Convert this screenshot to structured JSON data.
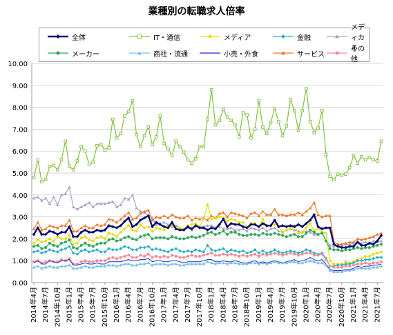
{
  "title": "業種別の転職求人倍率",
  "chart_data": {
    "type": "line",
    "title": "業種別の転職求人倍率",
    "xlabel": "",
    "ylabel": "",
    "ylim": [
      0,
      10
    ],
    "yticks": [
      "0.00",
      "1.00",
      "2.00",
      "3.00",
      "4.00",
      "5.00",
      "6.00",
      "7.00",
      "8.00",
      "9.00",
      "10.00"
    ],
    "grid": true,
    "legend_position": "top",
    "x": [
      "2014年4月",
      "2014年5月",
      "2014年6月",
      "2014年7月",
      "2014年8月",
      "2014年9月",
      "2014年10月",
      "2014年11月",
      "2014年12月",
      "2015年1月",
      "2015年2月",
      "2015年3月",
      "2015年4月",
      "2015年5月",
      "2015年6月",
      "2015年7月",
      "2015年8月",
      "2015年9月",
      "2015年10月",
      "2015年11月",
      "2015年12月",
      "2016年1月",
      "2016年2月",
      "2016年3月",
      "2016年4月",
      "2016年5月",
      "2016年6月",
      "2016年7月",
      "2016年8月",
      "2016年9月",
      "2016年10月",
      "2016年11月",
      "2016年12月",
      "2017年1月",
      "2017年2月",
      "2017年3月",
      "2017年4月",
      "2017年5月",
      "2017年6月",
      "2017年7月",
      "2017年8月",
      "2017年9月",
      "2017年10月",
      "2017年11月",
      "2017年12月",
      "2018年1月",
      "2018年2月",
      "2018年3月",
      "2018年4月",
      "2018年5月",
      "2018年6月",
      "2018年7月",
      "2018年8月",
      "2018年9月",
      "2018年10月",
      "2018年11月",
      "2018年12月",
      "2019年1月",
      "2019年2月",
      "2019年3月",
      "2019年4月",
      "2019年5月",
      "2019年6月",
      "2019年7月",
      "2019年8月",
      "2019年9月",
      "2019年10月",
      "2019年11月",
      "2019年12月",
      "2020年1月",
      "2020年2月",
      "2020年3月",
      "2020年4月",
      "2020年5月",
      "2020年6月",
      "2020年7月",
      "2020年8月",
      "2020年9月",
      "2020年10月",
      "2020年11月",
      "2020年12月",
      "2021年1月",
      "2021年2月",
      "2021年3月",
      "2021年4月",
      "2021年5月",
      "2021年6月",
      "2021年7月",
      "2021年8月"
    ],
    "xtick_labels": [
      "2014年4月",
      "2014年7月",
      "2014年10月",
      "2015年1月",
      "2015年4月",
      "2015年7月",
      "2015年10月",
      "2016年1月",
      "2016年4月",
      "2016年7月",
      "2016年10月",
      "2017年1月",
      "2017年4月",
      "2017年7月",
      "2017年10月",
      "2018年1月",
      "2018年4月",
      "2018年7月",
      "2018年10月",
      "2019年1月",
      "2019年4月",
      "2019年7月",
      "2019年10月",
      "2020年1月",
      "2020年4月",
      "2020年7月",
      "2020年10月",
      "2021年1月",
      "2021年4月",
      "2021年7月"
    ],
    "series": [
      {
        "name": "全体",
        "color": "#0a0a70",
        "marker": "diamond",
        "width": 2.4,
        "values": [
          2.2,
          2.5,
          2.2,
          2.2,
          2.35,
          2.3,
          2.2,
          2.3,
          2.3,
          2.55,
          2.1,
          2.1,
          2.3,
          2.4,
          2.3,
          2.3,
          2.4,
          2.35,
          2.4,
          2.6,
          2.55,
          2.5,
          2.6,
          2.8,
          2.95,
          2.55,
          2.65,
          2.85,
          2.95,
          3.05,
          2.55,
          2.75,
          2.65,
          2.55,
          2.5,
          2.75,
          2.45,
          2.4,
          2.4,
          2.55,
          2.45,
          2.6,
          2.5,
          2.5,
          2.4,
          2.5,
          2.45,
          2.65,
          2.9,
          2.55,
          2.7,
          2.65,
          2.65,
          2.55,
          2.5,
          2.65,
          2.65,
          2.55,
          2.7,
          2.6,
          2.6,
          2.85,
          2.55,
          2.6,
          2.55,
          2.6,
          2.55,
          2.65,
          2.55,
          2.7,
          2.85,
          3.1,
          2.55,
          2.45,
          2.5,
          2.5,
          1.75,
          1.65,
          1.6,
          1.6,
          1.65,
          1.65,
          1.85,
          1.7,
          1.7,
          1.8,
          1.75,
          1.9,
          2.15
        ]
      },
      {
        "name": "IT・通信",
        "color": "#7fc03c",
        "marker": "square-open",
        "width": 1.2,
        "values": [
          4.8,
          5.6,
          4.6,
          4.7,
          5.3,
          5.35,
          5.15,
          5.6,
          6.45,
          5.3,
          5.15,
          5.55,
          6.2,
          6.0,
          5.4,
          5.5,
          6.25,
          6.3,
          6.05,
          6.15,
          7.45,
          6.6,
          6.8,
          7.6,
          7.8,
          8.3,
          6.75,
          6.2,
          6.7,
          7.1,
          6.3,
          6.65,
          7.6,
          6.35,
          6.1,
          5.8,
          6.45,
          6.2,
          5.95,
          5.6,
          5.45,
          5.65,
          6.2,
          6.2,
          7.45,
          8.8,
          7.2,
          7.4,
          7.9,
          7.55,
          7.4,
          7.2,
          6.65,
          7.75,
          7.65,
          6.6,
          7.0,
          8.3,
          7.1,
          6.8,
          7.3,
          7.95,
          7.35,
          6.7,
          7.15,
          8.35,
          7.85,
          6.95,
          7.85,
          8.85,
          7.35,
          6.85,
          7.05,
          7.85,
          5.85,
          4.85,
          4.7,
          4.95,
          4.9,
          4.95,
          5.25,
          5.8,
          5.45,
          5.75,
          5.6,
          5.7,
          5.6,
          5.55,
          6.45
        ]
      },
      {
        "name": "メディア",
        "color": "#e6dc00",
        "marker": "diamond",
        "width": 1.2,
        "values": [
          1.8,
          1.95,
          1.85,
          1.9,
          2.0,
          1.9,
          2.1,
          2.0,
          2.0,
          2.15,
          1.75,
          1.8,
          2.05,
          2.1,
          1.95,
          1.9,
          2.05,
          2.1,
          2.0,
          2.25,
          2.2,
          2.1,
          2.3,
          2.45,
          2.6,
          2.4,
          2.35,
          2.65,
          2.5,
          2.55,
          2.35,
          2.5,
          2.45,
          2.4,
          2.55,
          2.6,
          2.45,
          2.5,
          2.45,
          2.6,
          2.65,
          2.7,
          2.55,
          2.9,
          3.55,
          2.9,
          2.95,
          3.0,
          2.95,
          2.8,
          2.9,
          2.85,
          2.75,
          2.75,
          2.55,
          2.7,
          2.7,
          2.55,
          2.9,
          2.55,
          2.6,
          2.65,
          2.55,
          2.3,
          2.4,
          2.45,
          2.6,
          2.25,
          2.3,
          2.5,
          2.7,
          2.35,
          2.45,
          2.3,
          2.25,
          1.0,
          0.85,
          0.85,
          0.85,
          0.95,
          0.9,
          0.95,
          1.05,
          1.1,
          1.2,
          1.2,
          1.3,
          1.35,
          1.4
        ]
      },
      {
        "name": "金融",
        "color": "#20b0c8",
        "marker": "diamond",
        "width": 1.2,
        "values": [
          1.4,
          1.45,
          1.35,
          1.4,
          1.5,
          1.45,
          1.4,
          1.5,
          1.55,
          1.65,
          1.35,
          1.3,
          1.45,
          1.5,
          1.4,
          1.45,
          1.5,
          1.4,
          1.4,
          1.55,
          1.5,
          1.5,
          1.55,
          1.65,
          1.6,
          1.5,
          1.5,
          1.6,
          1.6,
          1.65,
          1.5,
          1.55,
          1.5,
          1.45,
          1.4,
          1.5,
          1.55,
          1.45,
          1.4,
          1.45,
          1.4,
          1.5,
          1.45,
          1.4,
          1.7,
          1.5,
          1.45,
          1.5,
          1.55,
          1.4,
          1.5,
          1.45,
          1.4,
          1.45,
          1.35,
          1.4,
          1.5,
          1.35,
          1.45,
          1.35,
          1.4,
          1.5,
          1.4,
          1.35,
          1.4,
          1.45,
          1.4,
          1.35,
          1.4,
          1.5,
          1.45,
          1.35,
          1.3,
          1.35,
          1.1,
          0.75,
          0.75,
          0.8,
          0.8,
          0.85,
          0.85,
          0.9,
          1.0,
          1.0,
          1.05,
          1.05,
          1.1,
          1.15,
          1.15
        ]
      },
      {
        "name": "メディカル",
        "color": "#a8a2cc",
        "marker": "triangle",
        "width": 1.2,
        "values": [
          3.85,
          3.9,
          3.75,
          3.85,
          3.6,
          3.9,
          3.55,
          4.0,
          4.05,
          4.35,
          3.45,
          3.35,
          3.45,
          3.55,
          3.65,
          3.45,
          3.6,
          3.6,
          3.6,
          3.65,
          3.7,
          3.45,
          3.55,
          3.85,
          3.8,
          4.0,
          3.4,
          3.25,
          3.2,
          3.05,
          2.95,
          2.65,
          2.7,
          2.75,
          2.65,
          2.55,
          2.6,
          2.5,
          2.45,
          2.5,
          2.4,
          2.6,
          2.55,
          2.55,
          2.6,
          2.6,
          2.5,
          2.55,
          2.45,
          2.45,
          2.5,
          2.4,
          2.4,
          2.45,
          2.35,
          2.5,
          2.45,
          2.4,
          2.5,
          2.35,
          2.45,
          2.5,
          2.35,
          2.3,
          2.4,
          2.45,
          2.4,
          2.35,
          2.3,
          2.35,
          2.3,
          2.2,
          2.2,
          2.3,
          1.9,
          1.7,
          1.65,
          1.7,
          1.7,
          1.75,
          1.75,
          1.8,
          1.85,
          1.8,
          1.85,
          1.8,
          1.9,
          1.85,
          1.9
        ]
      },
      {
        "name": "メーカー",
        "color": "#2aa854",
        "marker": "circle",
        "width": 1.2,
        "values": [
          1.65,
          1.7,
          1.55,
          1.6,
          1.8,
          1.7,
          1.65,
          1.8,
          1.85,
          1.95,
          1.6,
          1.55,
          1.7,
          1.8,
          1.7,
          1.65,
          1.75,
          1.8,
          1.8,
          1.95,
          2.0,
          1.9,
          1.95,
          2.05,
          2.1,
          2.0,
          1.95,
          2.1,
          2.15,
          2.2,
          2.0,
          2.05,
          2.05,
          2.05,
          2.0,
          2.1,
          2.05,
          2.0,
          2.0,
          2.05,
          2.1,
          2.05,
          2.1,
          2.15,
          2.25,
          2.3,
          2.2,
          2.25,
          2.35,
          2.2,
          2.3,
          2.3,
          2.2,
          2.15,
          2.15,
          2.2,
          2.2,
          2.15,
          2.25,
          2.2,
          2.2,
          2.25,
          2.2,
          2.15,
          2.1,
          2.15,
          2.2,
          2.1,
          2.1,
          2.25,
          2.4,
          2.3,
          2.2,
          2.25,
          1.9,
          1.55,
          1.5,
          1.5,
          1.45,
          1.5,
          1.5,
          1.55,
          1.6,
          1.55,
          1.6,
          1.6,
          1.65,
          1.7,
          1.75
        ]
      },
      {
        "name": "商社・流通",
        "color": "#78c0e0",
        "marker": "triangle",
        "width": 1.2,
        "values": [
          0.7,
          0.75,
          0.65,
          0.7,
          0.75,
          0.7,
          0.7,
          0.75,
          0.75,
          0.8,
          0.65,
          0.65,
          0.7,
          0.75,
          0.7,
          0.7,
          0.75,
          0.75,
          0.75,
          0.8,
          0.8,
          0.75,
          0.8,
          0.85,
          0.85,
          0.8,
          0.8,
          0.85,
          0.85,
          0.9,
          0.8,
          0.85,
          0.85,
          0.85,
          0.8,
          0.85,
          0.85,
          0.8,
          0.8,
          0.85,
          0.85,
          0.85,
          0.85,
          0.85,
          0.95,
          0.9,
          0.85,
          0.9,
          0.9,
          0.85,
          0.9,
          0.9,
          0.85,
          0.85,
          0.85,
          0.9,
          0.9,
          0.85,
          0.9,
          0.85,
          0.9,
          0.95,
          0.9,
          0.9,
          0.9,
          0.95,
          0.95,
          0.9,
          0.9,
          0.95,
          1.0,
          0.95,
          0.9,
          0.9,
          0.8,
          0.55,
          0.5,
          0.5,
          0.5,
          0.55,
          0.55,
          0.6,
          0.65,
          0.65,
          0.65,
          0.65,
          0.7,
          0.7,
          0.75
        ]
      },
      {
        "name": "小売・外食",
        "color": "#1a2ad8",
        "marker": "none",
        "width": 1.0,
        "values": [
          0.9,
          1.0,
          0.85,
          0.85,
          1.0,
          0.95,
          0.9,
          1.0,
          1.0,
          1.05,
          0.8,
          0.8,
          0.85,
          0.9,
          0.85,
          0.85,
          0.9,
          0.85,
          0.85,
          0.95,
          0.95,
          0.95,
          0.95,
          1.0,
          1.05,
          1.0,
          1.0,
          1.05,
          1.05,
          1.1,
          0.95,
          1.0,
          1.0,
          0.95,
          0.95,
          1.0,
          1.0,
          0.95,
          0.9,
          0.95,
          0.95,
          0.95,
          0.95,
          1.0,
          1.05,
          1.05,
          0.95,
          0.95,
          1.0,
          0.95,
          0.95,
          1.0,
          0.95,
          0.9,
          0.9,
          0.95,
          1.0,
          0.9,
          0.95,
          0.9,
          0.95,
          1.0,
          0.95,
          0.9,
          0.95,
          1.0,
          1.05,
          0.95,
          1.0,
          1.05,
          1.15,
          1.05,
          1.0,
          1.05,
          0.85,
          0.6,
          0.55,
          0.55,
          0.55,
          0.6,
          0.6,
          0.65,
          0.75,
          0.7,
          0.75,
          0.75,
          0.8,
          0.8,
          0.85
        ]
      },
      {
        "name": "サービス",
        "color": "#f07828",
        "marker": "triangle",
        "width": 1.2,
        "values": [
          2.45,
          2.75,
          2.4,
          2.45,
          2.6,
          2.55,
          2.5,
          2.6,
          2.6,
          2.85,
          2.35,
          2.35,
          2.5,
          2.6,
          2.5,
          2.5,
          2.65,
          2.6,
          2.65,
          2.9,
          2.85,
          2.75,
          2.9,
          3.05,
          3.2,
          2.9,
          2.95,
          3.15,
          3.25,
          3.3,
          2.85,
          3.0,
          2.95,
          3.05,
          2.95,
          3.1,
          3.0,
          2.95,
          2.95,
          3.05,
          2.85,
          2.95,
          2.9,
          2.95,
          2.85,
          3.05,
          2.95,
          3.15,
          3.2,
          3.0,
          3.2,
          3.15,
          3.1,
          3.05,
          2.95,
          3.15,
          3.2,
          3.05,
          3.25,
          3.1,
          3.1,
          3.35,
          3.1,
          3.1,
          3.05,
          3.1,
          3.1,
          3.2,
          3.1,
          3.25,
          3.4,
          3.65,
          3.1,
          3.0,
          3.05,
          3.05,
          1.85,
          1.75,
          1.75,
          1.8,
          1.85,
          1.85,
          2.0,
          1.95,
          2.0,
          2.05,
          2.1,
          2.2,
          2.25
        ]
      },
      {
        "name": "その他",
        "color": "#f08c96",
        "marker": "circle",
        "width": 1.2,
        "values": [
          0.95,
          1.0,
          0.9,
          0.95,
          1.0,
          0.95,
          0.95,
          1.05,
          1.0,
          1.1,
          0.85,
          0.85,
          0.95,
          1.0,
          0.95,
          0.95,
          1.0,
          1.0,
          1.0,
          1.1,
          1.15,
          1.1,
          1.15,
          1.2,
          1.25,
          1.15,
          1.15,
          1.25,
          1.2,
          1.3,
          1.15,
          1.2,
          1.15,
          1.2,
          1.15,
          1.25,
          1.2,
          1.15,
          1.15,
          1.2,
          1.25,
          1.2,
          1.2,
          1.25,
          1.3,
          1.35,
          1.25,
          1.25,
          1.3,
          1.25,
          1.3,
          1.25,
          1.2,
          1.25,
          1.2,
          1.25,
          1.3,
          1.2,
          1.3,
          1.25,
          1.3,
          1.35,
          1.3,
          1.25,
          1.3,
          1.35,
          1.3,
          1.25,
          1.3,
          1.35,
          1.35,
          1.25,
          1.25,
          1.3,
          1.05,
          0.75,
          0.7,
          0.7,
          0.7,
          0.75,
          0.75,
          0.8,
          0.85,
          0.85,
          0.9,
          0.85,
          0.9,
          0.9,
          0.95
        ]
      }
    ]
  }
}
